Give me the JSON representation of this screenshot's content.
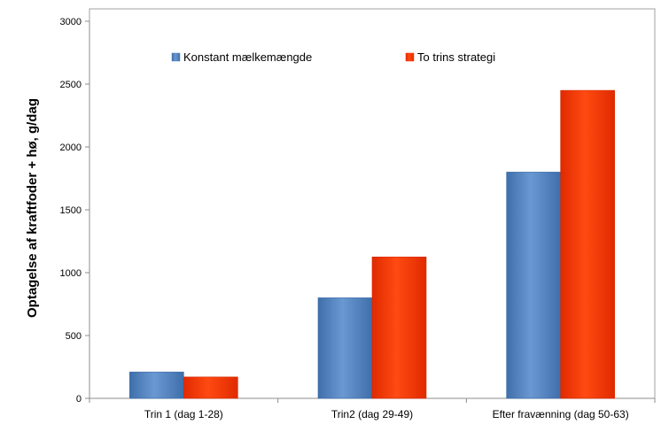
{
  "chart_data": {
    "type": "bar",
    "title": "",
    "xlabel": "",
    "ylabel": "Optagelse af kraftfoder + hø, g/dag",
    "ylim": [
      0,
      3000
    ],
    "yticks": [
      0,
      500,
      1000,
      1500,
      2000,
      2500,
      3000
    ],
    "grid": false,
    "legend_position": "top",
    "categories": [
      "Trin 1 (dag 1-28)",
      "Trin2 (dag 29-49)",
      "Efter fravænning (dag 50-63)"
    ],
    "series": [
      {
        "name": "Konstant mælkemængde",
        "color": "#4f81bd",
        "values": [
          210,
          800,
          1800
        ]
      },
      {
        "name": "To trins strategi",
        "color": "#ff3300",
        "values": [
          170,
          1125,
          2450
        ]
      }
    ]
  }
}
